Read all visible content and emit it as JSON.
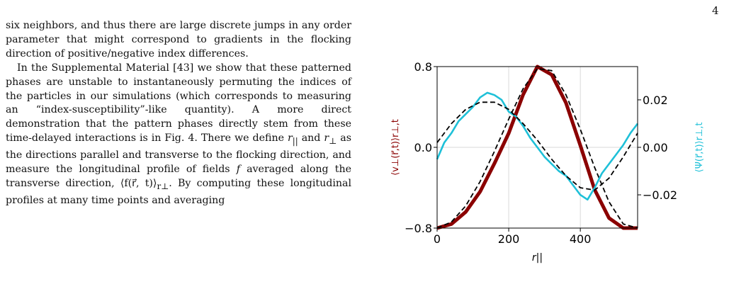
{
  "page": {
    "number": "4"
  },
  "text": {
    "p1": "six neighbors, and thus there are large discrete jumps in any order parameter that might correspond to gradients in the flocking direction of positive/negative index differences.",
    "p2_a": "In the Supplemental Material [43] we show that these patterned phases are unstable to instantaneously permuting the indices of the particles in our simulations (which corresponds to measuring an “index-susceptibility”-like quantity). A more direct demonstration that the pattern phases directly stem from these time-delayed interactions is in Fig. 4. There we define ",
    "r_par": "r",
    "r_par_sub": "||",
    "p2_b": " and ",
    "r_perp": "r",
    "r_perp_sub": "⊥",
    "p2_c": " as the directions parallel and transverse to the flocking direction, and measure the longitudinal profile of fields ",
    "f": "f",
    "p2_d": " averaged along the transverse direction, ",
    "avg_expr": "⟨f(r⃗, t)⟩",
    "avg_sub": "r⊥",
    "p2_e": ". By computing these longitudinal profiles at many time points and averaging"
  },
  "chart_data": {
    "type": "line",
    "xlabel": "r||",
    "ylabel_left": "⟨v⊥(r⃗,t)⟩r⊥,t",
    "ylabel_right": "⟨Ψ(r⃗,t)⟩r⊥,t",
    "xlim": [
      0,
      560
    ],
    "ylim_left": [
      -0.8,
      0.8
    ],
    "ylim_right": [
      -0.034,
      0.034
    ],
    "x_ticks": [
      "0",
      "200",
      "400"
    ],
    "y_ticks_left": [
      "0.8",
      "0.0",
      "−0.8"
    ],
    "y_ticks_right": [
      "0.02",
      "0.00",
      "−0.02"
    ],
    "grid": true,
    "colors": {
      "velocity": "#8b0000",
      "psi": "#1ec0d8",
      "fit": "#000000"
    },
    "series": [
      {
        "axis": "left",
        "style": "solid",
        "x": [
          0,
          40,
          80,
          120,
          160,
          200,
          240,
          280,
          320,
          360,
          400,
          440,
          480,
          520,
          560
        ],
        "y": [
          -0.8,
          -0.76,
          -0.64,
          -0.44,
          -0.16,
          0.14,
          0.52,
          0.8,
          0.72,
          0.44,
          0.02,
          -0.42,
          -0.7,
          -0.8,
          -0.8
        ]
      },
      {
        "axis": "left",
        "style": "dashed",
        "x": [
          0,
          40,
          80,
          120,
          160,
          200,
          240,
          280,
          320,
          360,
          400,
          440,
          480,
          520,
          560
        ],
        "y": [
          -0.8,
          -0.74,
          -0.58,
          -0.34,
          -0.04,
          0.28,
          0.58,
          0.78,
          0.76,
          0.52,
          0.18,
          -0.2,
          -0.54,
          -0.76,
          -0.8
        ]
      },
      {
        "axis": "right",
        "style": "solid",
        "x": [
          0,
          20,
          40,
          60,
          80,
          100,
          120,
          140,
          160,
          180,
          200,
          220,
          240,
          260,
          280,
          300,
          320,
          340,
          360,
          380,
          400,
          420,
          440,
          460,
          480,
          500,
          520,
          540,
          560
        ],
        "y": [
          -0.005,
          0.002,
          0.006,
          0.011,
          0.014,
          0.017,
          0.021,
          0.023,
          0.022,
          0.02,
          0.015,
          0.013,
          0.009,
          0.004,
          0.0,
          -0.004,
          -0.007,
          -0.01,
          -0.012,
          -0.016,
          -0.02,
          -0.022,
          -0.017,
          -0.011,
          -0.007,
          -0.003,
          0.001,
          0.006,
          0.01
        ]
      },
      {
        "axis": "right",
        "style": "dashed",
        "x": [
          0,
          40,
          80,
          120,
          160,
          200,
          240,
          280,
          320,
          360,
          400,
          440,
          480,
          520,
          560
        ],
        "y": [
          0.002,
          0.01,
          0.016,
          0.019,
          0.019,
          0.016,
          0.01,
          0.003,
          -0.005,
          -0.012,
          -0.017,
          -0.018,
          -0.013,
          -0.004,
          0.006
        ]
      }
    ]
  }
}
